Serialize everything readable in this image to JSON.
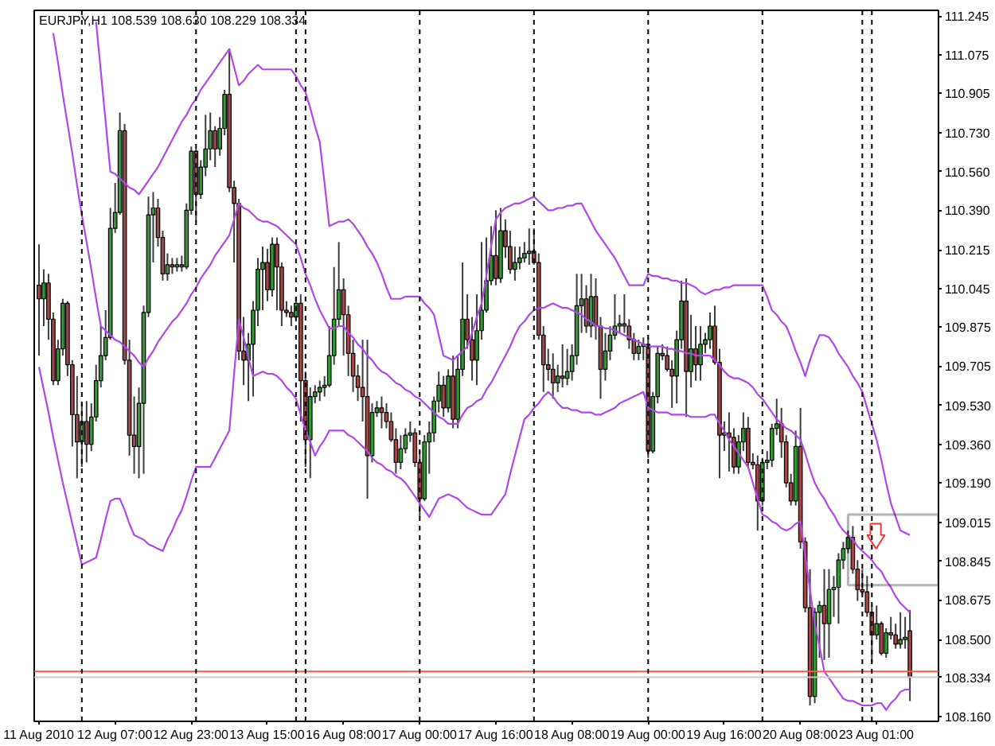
{
  "chart_data": {
    "type": "candlestick",
    "title": "EURJPY,H1  108.539 108.630 108.229 108.334",
    "ylim": [
      108.14,
      111.27
    ],
    "yticks": [
      111.245,
      111.075,
      110.905,
      {
        "value": 110.73,
        "label": "110.730"
      },
      {
        "value": 110.56,
        "label": "110.560"
      },
      {
        "value": 110.39,
        "label": "110.390"
      },
      110.215,
      110.045,
      109.875,
      109.705,
      {
        "value": 109.53,
        "label": "109.530"
      },
      {
        "value": 109.36,
        "label": "109.360"
      },
      {
        "value": 109.19,
        "label": "109.190"
      },
      109.015,
      108.845,
      108.675,
      {
        "value": 108.5,
        "label": "108.500"
      },
      {
        "value": 108.16,
        "label": "108.160"
      }
    ],
    "categories": [
      "11 Aug 2010",
      null,
      null,
      null,
      null,
      null,
      null,
      null,
      null,
      null,
      null,
      null,
      null,
      null,
      null,
      null,
      "12 Aug 07:00",
      null,
      null,
      null,
      null,
      null,
      null,
      null,
      null,
      null,
      null,
      null,
      null,
      null,
      null,
      null,
      "12 Aug 23:00",
      null,
      null,
      null,
      null,
      null,
      null,
      null,
      null,
      null,
      null,
      null,
      null,
      null,
      null,
      null,
      "13 Aug 15:00",
      null,
      null,
      null,
      null,
      null,
      null,
      null,
      null,
      null,
      null,
      null,
      null,
      null,
      null,
      null,
      "16 Aug 08:00",
      null,
      null,
      null,
      null,
      null,
      null,
      null,
      null,
      null,
      null,
      null,
      null,
      null,
      null,
      null,
      "17 Aug 00:00",
      null,
      null,
      null,
      null,
      null,
      null,
      null,
      null,
      null,
      null,
      null,
      null,
      null,
      null,
      null,
      "17 Aug 16:00",
      null,
      null,
      null,
      null,
      null,
      null,
      null,
      null,
      null,
      null,
      null,
      null,
      null,
      null,
      null,
      "18 Aug 08:00",
      null,
      null,
      null,
      null,
      null,
      null,
      null,
      null,
      null,
      null,
      null,
      null,
      null,
      null,
      null,
      "19 Aug 00:00",
      null,
      null,
      null,
      null,
      null,
      null,
      null,
      null,
      null,
      null,
      null,
      null,
      null,
      null,
      null,
      "19 Aug 16:00",
      null,
      null,
      null,
      null,
      null,
      null,
      null,
      null,
      null,
      null,
      null,
      null,
      null,
      null,
      null,
      "20 Aug 08:00",
      null,
      null,
      null,
      null,
      null,
      null,
      null,
      null,
      null,
      null,
      null,
      null,
      null,
      null,
      null,
      "23 Aug 01:00",
      null,
      null,
      null,
      null,
      null,
      null,
      null
    ],
    "ohlc": [
      [
        110.06,
        110.24,
        109.75,
        110.0
      ],
      [
        110.0,
        110.13,
        109.88,
        110.07
      ],
      [
        110.07,
        110.11,
        109.82,
        109.91
      ],
      [
        109.91,
        109.94,
        109.62,
        109.64
      ],
      [
        109.64,
        109.82,
        109.62,
        109.78
      ],
      [
        109.78,
        110.0,
        109.75,
        109.98
      ],
      [
        109.98,
        109.99,
        109.66,
        109.71
      ],
      [
        109.71,
        109.73,
        109.35,
        109.49
      ],
      [
        109.49,
        109.66,
        109.21,
        109.37
      ],
      [
        109.37,
        109.54,
        109.26,
        109.46
      ],
      [
        109.46,
        109.55,
        109.28,
        109.36
      ],
      [
        109.36,
        109.54,
        109.33,
        109.48
      ],
      [
        109.48,
        109.71,
        109.46,
        109.64
      ],
      [
        109.64,
        109.88,
        109.61,
        109.75
      ],
      [
        109.75,
        109.95,
        109.73,
        109.83
      ],
      [
        109.83,
        110.4,
        109.82,
        110.31
      ],
      [
        110.31,
        110.51,
        110.29,
        110.38
      ],
      [
        110.38,
        110.82,
        110.37,
        110.74
      ],
      [
        110.74,
        110.77,
        109.71,
        109.73
      ],
      [
        109.73,
        109.82,
        109.31,
        109.4
      ],
      [
        109.4,
        109.57,
        109.23,
        109.35
      ],
      [
        109.35,
        109.61,
        109.21,
        109.54
      ],
      [
        109.54,
        109.97,
        109.23,
        109.94
      ],
      [
        109.94,
        110.45,
        109.92,
        110.37
      ],
      [
        110.37,
        110.47,
        110.16,
        110.4
      ],
      [
        110.4,
        110.44,
        110.23,
        110.27
      ],
      [
        110.27,
        110.3,
        110.08,
        110.11
      ],
      [
        110.11,
        110.2,
        110.08,
        110.15
      ],
      [
        110.15,
        110.18,
        110.11,
        110.14
      ],
      [
        110.14,
        110.18,
        110.12,
        110.15
      ],
      [
        110.15,
        110.19,
        110.12,
        110.14
      ],
      [
        110.14,
        110.42,
        110.13,
        110.39
      ],
      [
        110.39,
        110.67,
        110.37,
        110.65
      ],
      [
        110.65,
        110.66,
        110.34,
        110.46
      ],
      [
        110.46,
        110.61,
        110.44,
        110.58
      ],
      [
        110.58,
        110.81,
        110.54,
        110.66
      ],
      [
        110.66,
        110.82,
        110.61,
        110.74
      ],
      [
        110.74,
        110.76,
        110.58,
        110.66
      ],
      [
        110.66,
        110.8,
        110.63,
        110.75
      ],
      [
        110.75,
        110.92,
        110.72,
        110.9
      ],
      [
        110.9,
        111.1,
        110.47,
        110.49
      ],
      [
        110.49,
        110.52,
        110.16,
        110.42
      ],
      [
        110.42,
        110.44,
        109.73,
        109.77
      ],
      [
        109.77,
        109.92,
        109.62,
        109.73
      ],
      [
        109.73,
        109.85,
        109.55,
        109.8
      ],
      [
        109.8,
        109.99,
        109.57,
        109.95
      ],
      [
        109.95,
        110.18,
        109.88,
        110.13
      ],
      [
        110.13,
        110.23,
        109.95,
        110.16
      ],
      [
        110.16,
        110.22,
        109.99,
        110.04
      ],
      [
        110.04,
        110.27,
        110.01,
        110.24
      ],
      [
        110.24,
        110.27,
        109.95,
        110.14
      ],
      [
        110.14,
        110.16,
        109.88,
        109.95
      ],
      [
        109.95,
        109.99,
        109.92,
        109.94
      ],
      [
        109.94,
        109.97,
        109.88,
        109.92
      ],
      [
        109.92,
        110.01,
        109.9,
        109.98
      ],
      [
        109.98,
        110.02,
        109.46,
        109.64
      ],
      [
        109.64,
        109.68,
        109.26,
        109.38
      ],
      [
        109.38,
        109.61,
        109.21,
        109.57
      ],
      [
        109.57,
        109.62,
        109.54,
        109.59
      ],
      [
        109.59,
        109.64,
        109.55,
        109.61
      ],
      [
        109.61,
        109.66,
        109.57,
        109.62
      ],
      [
        109.62,
        109.88,
        109.61,
        109.75
      ],
      [
        109.75,
        110.14,
        109.71,
        109.91
      ],
      [
        109.91,
        110.25,
        109.88,
        110.04
      ],
      [
        110.04,
        110.09,
        109.75,
        109.93
      ],
      [
        109.93,
        109.97,
        109.66,
        109.76
      ],
      [
        109.76,
        109.82,
        109.59,
        109.66
      ],
      [
        109.66,
        109.71,
        109.55,
        109.61
      ],
      [
        109.61,
        109.82,
        109.46,
        109.57
      ],
      [
        109.57,
        109.82,
        109.12,
        109.31
      ],
      [
        109.31,
        109.54,
        109.28,
        109.5
      ],
      [
        109.5,
        109.55,
        109.48,
        109.52
      ],
      [
        109.52,
        109.57,
        109.43,
        109.5
      ],
      [
        109.5,
        109.54,
        109.43,
        109.46
      ],
      [
        109.46,
        109.5,
        109.37,
        109.38
      ],
      [
        109.38,
        109.43,
        109.23,
        109.28
      ],
      [
        109.28,
        109.4,
        109.25,
        109.34
      ],
      [
        109.34,
        109.43,
        109.32,
        109.4
      ],
      [
        109.4,
        109.46,
        109.37,
        109.41
      ],
      [
        109.41,
        109.43,
        109.26,
        109.28
      ],
      [
        109.28,
        109.33,
        109.04,
        109.12
      ],
      [
        109.12,
        109.4,
        109.11,
        109.37
      ],
      [
        109.37,
        109.46,
        109.23,
        109.41
      ],
      [
        109.41,
        109.57,
        109.37,
        109.55
      ],
      [
        109.55,
        109.68,
        109.5,
        109.62
      ],
      [
        109.62,
        109.66,
        109.48,
        109.52
      ],
      [
        109.52,
        109.69,
        109.5,
        109.66
      ],
      [
        109.66,
        109.75,
        109.43,
        109.47
      ],
      [
        109.47,
        109.75,
        109.43,
        109.69
      ],
      [
        109.69,
        110.16,
        109.66,
        109.91
      ],
      [
        109.91,
        110.02,
        109.78,
        109.82
      ],
      [
        109.82,
        109.92,
        109.64,
        109.73
      ],
      [
        109.73,
        110.02,
        109.62,
        109.86
      ],
      [
        109.86,
        110.25,
        109.82,
        109.95
      ],
      [
        109.95,
        110.27,
        109.94,
        110.08
      ],
      [
        110.08,
        110.32,
        110.06,
        110.19
      ],
      [
        110.19,
        110.39,
        110.06,
        110.09
      ],
      [
        110.09,
        110.4,
        110.07,
        110.3
      ],
      [
        110.3,
        110.35,
        110.18,
        110.23
      ],
      [
        110.23,
        110.3,
        110.11,
        110.13
      ],
      [
        110.13,
        110.23,
        110.08,
        110.16
      ],
      [
        110.16,
        110.23,
        110.13,
        110.18
      ],
      [
        110.18,
        110.25,
        110.16,
        110.2
      ],
      [
        110.2,
        110.31,
        110.15,
        110.21
      ],
      [
        110.21,
        110.31,
        110.15,
        110.16
      ],
      [
        110.16,
        110.2,
        109.82,
        109.84
      ],
      [
        109.84,
        109.88,
        109.59,
        109.71
      ],
      [
        109.71,
        109.78,
        109.64,
        109.69
      ],
      [
        109.69,
        109.76,
        109.56,
        109.63
      ],
      [
        109.63,
        109.71,
        109.59,
        109.66
      ],
      [
        109.66,
        109.8,
        109.61,
        109.65
      ],
      [
        109.65,
        109.78,
        109.62,
        109.68
      ],
      [
        109.68,
        109.8,
        109.64,
        109.75
      ],
      [
        109.75,
        110.11,
        109.71,
        109.97
      ],
      [
        109.97,
        110.11,
        109.85,
        110.0
      ],
      [
        110.0,
        110.06,
        109.85,
        109.88
      ],
      [
        109.88,
        110.11,
        109.83,
        110.01
      ],
      [
        110.01,
        110.09,
        109.82,
        109.88
      ],
      [
        109.88,
        109.92,
        109.56,
        109.69
      ],
      [
        109.69,
        109.85,
        109.64,
        109.77
      ],
      [
        109.77,
        109.88,
        109.73,
        109.84
      ],
      [
        109.84,
        110.02,
        109.82,
        109.88
      ],
      [
        109.88,
        109.93,
        109.85,
        109.89
      ],
      [
        109.89,
        110.02,
        109.85,
        109.88
      ],
      [
        109.88,
        109.91,
        109.78,
        109.82
      ],
      [
        109.82,
        109.85,
        109.73,
        109.76
      ],
      [
        109.76,
        109.82,
        109.73,
        109.79
      ],
      [
        109.79,
        109.83,
        109.73,
        109.8
      ],
      [
        109.8,
        109.83,
        109.3,
        109.33
      ],
      [
        109.33,
        109.59,
        109.32,
        109.57
      ],
      [
        109.57,
        109.79,
        109.54,
        109.76
      ],
      [
        109.76,
        109.8,
        109.73,
        109.75
      ],
      [
        109.75,
        109.79,
        109.68,
        109.69
      ],
      [
        109.69,
        109.73,
        109.52,
        109.66
      ],
      [
        109.66,
        109.86,
        109.54,
        109.82
      ],
      [
        109.82,
        110.08,
        109.78,
        109.99
      ],
      [
        109.99,
        110.09,
        109.48,
        109.68
      ],
      [
        109.68,
        109.93,
        109.61,
        109.78
      ],
      [
        109.78,
        109.88,
        109.64,
        109.71
      ],
      [
        109.71,
        109.88,
        109.64,
        109.8
      ],
      [
        109.8,
        109.85,
        109.76,
        109.82
      ],
      [
        109.82,
        109.94,
        109.78,
        109.88
      ],
      [
        109.88,
        109.97,
        109.71,
        109.72
      ],
      [
        109.72,
        109.78,
        109.21,
        109.4
      ],
      [
        109.4,
        109.46,
        109.33,
        109.41
      ],
      [
        109.41,
        109.5,
        109.24,
        109.39
      ],
      [
        109.39,
        109.43,
        109.23,
        109.26
      ],
      [
        109.26,
        109.4,
        109.23,
        109.37
      ],
      [
        109.37,
        109.5,
        109.33,
        109.43
      ],
      [
        109.43,
        109.48,
        109.26,
        109.28
      ],
      [
        109.28,
        109.32,
        109.25,
        109.27
      ],
      [
        109.27,
        109.31,
        108.98,
        109.11
      ],
      [
        109.11,
        109.3,
        109.09,
        109.28
      ],
      [
        109.28,
        109.33,
        109.25,
        109.29
      ],
      [
        109.29,
        109.45,
        109.26,
        109.43
      ],
      [
        109.43,
        109.56,
        109.4,
        109.45
      ],
      [
        109.45,
        109.52,
        109.3,
        109.37
      ],
      [
        109.37,
        109.4,
        109.17,
        109.19
      ],
      [
        109.19,
        109.23,
        109.09,
        109.11
      ],
      [
        109.11,
        109.42,
        109.09,
        109.35
      ],
      [
        109.35,
        109.52,
        108.9,
        108.93
      ],
      [
        108.93,
        108.95,
        108.62,
        108.64
      ],
      [
        108.64,
        108.81,
        108.21,
        108.25
      ],
      [
        108.25,
        108.64,
        108.22,
        108.62
      ],
      [
        108.62,
        108.67,
        108.42,
        108.65
      ],
      [
        108.65,
        108.81,
        108.41,
        108.57
      ],
      [
        108.57,
        108.81,
        108.42,
        108.72
      ],
      [
        108.72,
        108.78,
        108.6,
        108.73
      ],
      [
        108.73,
        108.88,
        108.57,
        108.85
      ],
      [
        108.85,
        108.93,
        108.81,
        108.9
      ],
      [
        108.9,
        108.98,
        108.88,
        108.95
      ],
      [
        108.95,
        109.0,
        108.79,
        108.81
      ],
      [
        108.81,
        108.85,
        108.67,
        108.72
      ],
      [
        108.72,
        108.81,
        108.7,
        108.71
      ],
      [
        108.71,
        108.78,
        108.6,
        108.62
      ],
      [
        108.62,
        108.65,
        108.4,
        108.52
      ],
      [
        108.52,
        108.65,
        108.5,
        108.57
      ],
      [
        108.57,
        108.58,
        108.43,
        108.44
      ],
      [
        108.44,
        108.55,
        108.42,
        108.53
      ],
      [
        108.53,
        108.6,
        108.5,
        108.52
      ],
      [
        108.52,
        108.57,
        108.46,
        108.48
      ],
      [
        108.48,
        108.62,
        108.46,
        108.5
      ],
      [
        108.5,
        108.6,
        108.46,
        108.51
      ],
      [
        108.539,
        108.63,
        108.229,
        108.334
      ]
    ],
    "colors": [
      "#a04848",
      "#339933",
      "#a04848",
      "#a04848",
      "#339933",
      "#339933",
      "#a04848",
      "#a04848",
      "#a04848",
      "#339933",
      "#a04848",
      "#339933",
      "#339933",
      "#339933",
      "#339933",
      "#339933",
      "#339933",
      "#339933",
      "#a04848",
      "#a04848",
      "#a04848",
      "#339933",
      "#339933",
      "#339933",
      "#339933",
      "#a04848",
      "#a04848",
      "#339933",
      "#a04848",
      "#339933",
      "#a04848",
      "#339933",
      "#339933",
      "#a04848",
      "#339933",
      "#339933",
      "#339933",
      "#a04848",
      "#339933",
      "#339933",
      "#a04848",
      "#a04848",
      "#a04848",
      "#a04848",
      "#339933",
      "#339933",
      "#339933",
      "#339933",
      "#a04848",
      "#339933",
      "#a04848",
      "#a04848",
      "#a04848",
      "#a04848",
      "#339933",
      "#a04848",
      "#a04848",
      "#339933",
      "#339933",
      "#339933",
      "#339933",
      "#339933",
      "#339933",
      "#339933",
      "#a04848",
      "#a04848",
      "#a04848",
      "#a04848",
      "#a04848",
      "#a04848",
      "#339933",
      "#339933",
      "#a04848",
      "#a04848",
      "#a04848",
      "#a04848",
      "#339933",
      "#339933",
      "#339933",
      "#a04848",
      "#a04848",
      "#339933",
      "#339933",
      "#339933",
      "#339933",
      "#a04848",
      "#339933",
      "#a04848",
      "#339933",
      "#339933",
      "#a04848",
      "#a04848",
      "#339933",
      "#339933",
      "#339933",
      "#339933",
      "#a04848",
      "#339933",
      "#a04848",
      "#a04848",
      "#339933",
      "#339933",
      "#339933",
      "#339933",
      "#a04848",
      "#a04848",
      "#a04848",
      "#a04848",
      "#a04848",
      "#339933",
      "#a04848",
      "#339933",
      "#339933",
      "#339933",
      "#339933",
      "#a04848",
      "#339933",
      "#a04848",
      "#a04848",
      "#339933",
      "#339933",
      "#339933",
      "#339933",
      "#a04848",
      "#a04848",
      "#a04848",
      "#339933",
      "#339933",
      "#a04848",
      "#339933",
      "#339933",
      "#a04848",
      "#a04848",
      "#a04848",
      "#339933",
      "#339933",
      "#a04848",
      "#339933",
      "#a04848",
      "#339933",
      "#339933",
      "#339933",
      "#a04848",
      "#a04848",
      "#339933",
      "#a04848",
      "#a04848",
      "#339933",
      "#339933",
      "#a04848",
      "#a04848",
      "#a04848",
      "#339933",
      "#339933",
      "#339933",
      "#339933",
      "#a04848",
      "#a04848",
      "#a04848",
      "#339933",
      "#a04848",
      "#a04848",
      "#a04848",
      "#339933",
      "#339933",
      "#a04848",
      "#339933",
      "#339933",
      "#339933",
      "#339933",
      "#339933",
      "#a04848",
      "#a04848",
      "#a04848",
      "#a04848",
      "#a04848",
      "#339933",
      "#a04848",
      "#339933",
      "#a04848",
      "#a04848",
      "#339933",
      "#339933",
      "#a04848"
    ],
    "series": [
      {
        "type": "line",
        "color": "#b048e8",
        "values": [
          null,
          null,
          null,
          null,
          null,
          null,
          null,
          null,
          null,
          null,
          null,
          null,
          111.22,
          111.0,
          110.78,
          110.56,
          110.55,
          110.53,
          110.51,
          110.49,
          110.48,
          110.46,
          110.49,
          110.52,
          110.55,
          110.58,
          110.62,
          110.66,
          110.7,
          110.74,
          110.78,
          110.81,
          110.85,
          110.88,
          110.92,
          110.95,
          110.98,
          111.01,
          111.04,
          111.07,
          111.1,
          111.02,
          110.94,
          110.96,
          110.99,
          111.01,
          111.03,
          111.01,
          111.01,
          111.01,
          111.01,
          111.01,
          111.01,
          111.01,
          110.98,
          110.94,
          110.91,
          110.84,
          110.76,
          110.69,
          110.51,
          110.32,
          110.33,
          110.34,
          110.34,
          110.35,
          110.33,
          110.3,
          110.27,
          110.23,
          110.2,
          110.16,
          110.11,
          110.05,
          110.0,
          110.0,
          110.0,
          110.01,
          110.01,
          110.01,
          110.01,
          109.98,
          109.96,
          109.93,
          109.84,
          109.75,
          109.74,
          109.73,
          109.75,
          109.77,
          109.79,
          109.85,
          109.92,
          109.98,
          110.1,
          110.23,
          110.35,
          110.38,
          110.4,
          110.41,
          110.42,
          110.42,
          110.43,
          110.44,
          110.45,
          110.43,
          110.41,
          110.39,
          110.39,
          110.4,
          110.4,
          110.41,
          110.41,
          110.42,
          110.42,
          110.38,
          110.34,
          110.3,
          110.27,
          110.24,
          110.21,
          110.18,
          110.14,
          110.1,
          110.06,
          110.06,
          110.06,
          110.06,
          110.11,
          110.1,
          110.1,
          110.09,
          110.09,
          110.08,
          110.08,
          110.07,
          110.07,
          110.06,
          110.05,
          110.03,
          110.02,
          110.03,
          110.04,
          110.04,
          110.05,
          110.05,
          110.06,
          110.06,
          110.06,
          110.06,
          110.06,
          110.06,
          110.06,
          110.01,
          109.95,
          109.93,
          109.9,
          109.88,
          109.83,
          109.77,
          109.72,
          109.66,
          109.73,
          109.79,
          109.84,
          109.84,
          109.83,
          109.8,
          109.76,
          109.73,
          109.7,
          109.66,
          109.63,
          109.59,
          109.52,
          109.45,
          109.38,
          109.29,
          109.19,
          109.1,
          109.04,
          108.98,
          108.97,
          108.96
        ]
      },
      {
        "type": "line",
        "color": "#b048e8",
        "values": [
          null,
          null,
          null,
          111.17,
          111.04,
          110.9,
          110.77,
          110.64,
          110.5,
          110.37,
          110.25,
          110.13,
          110.0,
          109.88,
          109.86,
          109.84,
          109.82,
          109.81,
          109.79,
          109.77,
          109.75,
          109.72,
          109.7,
          109.74,
          109.77,
          109.81,
          109.84,
          109.87,
          109.9,
          109.92,
          109.95,
          109.98,
          110.02,
          110.05,
          110.09,
          110.12,
          110.15,
          110.19,
          110.22,
          110.25,
          110.28,
          110.35,
          110.42,
          110.4,
          110.39,
          110.37,
          110.35,
          110.34,
          110.34,
          110.33,
          110.32,
          110.3,
          110.28,
          110.26,
          110.24,
          110.18,
          110.11,
          110.06,
          110.0,
          109.95,
          109.91,
          109.87,
          109.87,
          109.88,
          109.88,
          109.85,
          109.83,
          109.8,
          109.78,
          109.75,
          109.73,
          109.7,
          109.68,
          109.67,
          109.65,
          109.63,
          109.62,
          109.6,
          109.59,
          109.57,
          109.56,
          109.54,
          109.52,
          109.5,
          109.48,
          109.47,
          109.45,
          109.45,
          109.45,
          109.49,
          109.52,
          109.53,
          109.55,
          109.56,
          109.6,
          109.63,
          109.67,
          109.71,
          109.75,
          109.79,
          109.84,
          109.88,
          109.9,
          109.93,
          109.95,
          109.96,
          109.96,
          109.97,
          109.98,
          109.97,
          109.96,
          109.96,
          109.95,
          109.94,
          109.93,
          109.91,
          109.9,
          109.88,
          109.88,
          109.87,
          109.87,
          109.86,
          109.85,
          109.84,
          109.83,
          109.82,
          109.81,
          109.8,
          109.79,
          109.79,
          109.79,
          109.79,
          109.78,
          109.78,
          109.77,
          109.77,
          109.76,
          109.76,
          109.75,
          109.75,
          109.75,
          109.75,
          109.73,
          109.71,
          109.68,
          109.66,
          109.65,
          109.65,
          109.64,
          109.63,
          109.61,
          109.58,
          109.56,
          109.53,
          109.5,
          109.47,
          109.45,
          109.43,
          109.42,
          109.4,
          109.38,
          109.32,
          109.25,
          109.19,
          109.15,
          109.12,
          109.08,
          109.05,
          109.01,
          108.98,
          108.96,
          108.94,
          108.91,
          108.89,
          108.87,
          108.85,
          108.82,
          108.8,
          108.76,
          108.73,
          108.69,
          108.66,
          108.64,
          108.62
        ]
      },
      {
        "type": "line",
        "color": "#b048e8",
        "values": [
          109.7,
          109.6,
          109.5,
          109.39,
          109.29,
          109.19,
          109.1,
          109.01,
          108.92,
          108.83,
          108.84,
          108.85,
          108.86,
          108.94,
          109.03,
          109.11,
          109.12,
          109.12,
          109.07,
          109.01,
          108.96,
          108.95,
          108.94,
          108.92,
          108.91,
          108.9,
          108.89,
          108.94,
          108.98,
          109.03,
          109.07,
          109.13,
          109.2,
          109.26,
          109.26,
          109.26,
          109.26,
          109.3,
          109.34,
          109.38,
          109.42,
          109.67,
          109.91,
          109.83,
          109.74,
          109.66,
          109.67,
          109.68,
          109.67,
          109.67,
          109.66,
          109.64,
          109.61,
          109.59,
          109.56,
          109.49,
          109.42,
          109.37,
          109.31,
          109.35,
          109.38,
          109.42,
          109.42,
          109.42,
          109.42,
          109.4,
          109.39,
          109.37,
          109.35,
          109.33,
          109.3,
          109.28,
          109.27,
          109.25,
          109.24,
          109.22,
          109.21,
          109.19,
          109.16,
          109.13,
          109.1,
          109.07,
          109.04,
          109.08,
          109.12,
          109.13,
          109.14,
          109.13,
          109.12,
          109.1,
          109.08,
          109.07,
          109.06,
          109.05,
          109.05,
          109.05,
          109.08,
          109.11,
          109.14,
          109.23,
          109.31,
          109.39,
          109.47,
          109.49,
          109.52,
          109.54,
          109.57,
          109.59,
          109.57,
          109.54,
          109.52,
          109.52,
          109.51,
          109.51,
          109.5,
          109.5,
          109.5,
          109.49,
          109.49,
          109.5,
          109.51,
          109.52,
          109.54,
          109.55,
          109.56,
          109.57,
          109.58,
          109.59,
          109.52,
          109.51,
          109.5,
          109.5,
          109.5,
          109.49,
          109.49,
          109.49,
          109.49,
          109.48,
          109.48,
          109.48,
          109.48,
          109.49,
          109.49,
          109.45,
          109.42,
          109.38,
          109.35,
          109.32,
          109.29,
          109.26,
          109.19,
          109.12,
          109.05,
          109.04,
          109.02,
          109.01,
          108.99,
          108.98,
          108.99,
          109.01,
          109.02,
          108.87,
          108.72,
          108.57,
          108.47,
          108.36,
          108.33,
          108.3,
          108.27,
          108.24,
          108.23,
          108.23,
          108.22,
          108.21,
          108.21,
          108.21,
          108.22,
          108.22,
          108.19,
          108.22,
          108.24,
          108.27,
          108.28,
          108.28
        ]
      }
    ],
    "ref_lines": [
      {
        "axis": "y",
        "value": 108.36,
        "color": "#ff5a3c",
        "line_style": "solid"
      },
      {
        "axis": "y",
        "value": 108.334,
        "label": "108.334",
        "color": "#c8c8c8",
        "line_style": "solid"
      }
    ]
  }
}
